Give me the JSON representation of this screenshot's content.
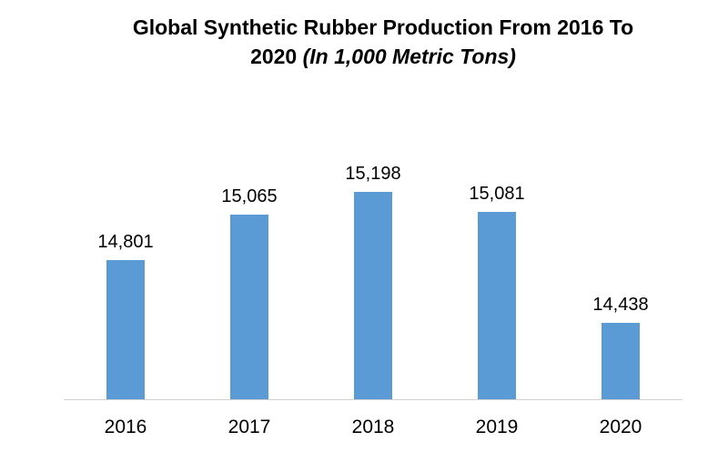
{
  "title": {
    "main": "Global Synthetic Rubber Production From 2016 To",
    "line2_prefix": "2020 ",
    "line2_italic": "(In 1,000 Metric Tons)"
  },
  "colors": {
    "bar": "#5b9bd5",
    "axis": "#d0d0d0"
  },
  "chart_data": {
    "type": "bar",
    "title": "Global Synthetic Rubber Production From 2016 To 2020 (In 1,000 Metric Tons)",
    "categories": [
      "2016",
      "2017",
      "2018",
      "2019",
      "2020"
    ],
    "values": [
      14801,
      15065,
      15198,
      15081,
      14438
    ],
    "value_labels": [
      "14,801",
      "15,065",
      "15,198",
      "15,081",
      "14,438"
    ],
    "xlabel": "",
    "ylabel": "",
    "ylim": [
      14000,
      15400
    ],
    "grid": false,
    "legend": "none",
    "y_axis_visible": false
  }
}
